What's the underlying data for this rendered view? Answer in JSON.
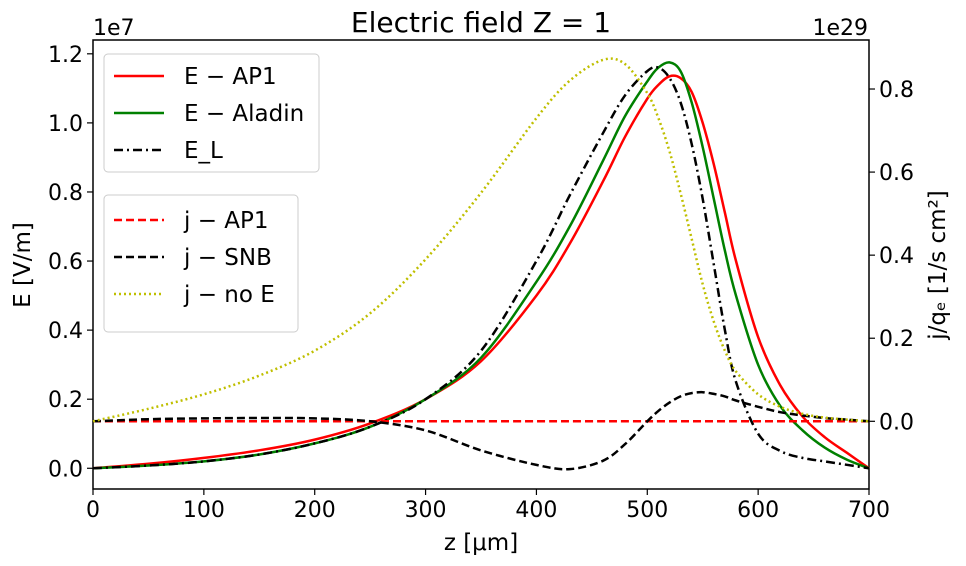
{
  "chart_data": {
    "type": "line",
    "title": "Electric field Z = 1",
    "xlabel": "z [μm]",
    "xlim": [
      0,
      700
    ],
    "xticks": [
      0,
      100,
      200,
      300,
      400,
      500,
      600,
      700
    ],
    "left_axis": {
      "label": "E [V/m]",
      "offset_text": "1e7",
      "ylim": [
        -0.06,
        1.24
      ],
      "ticks": [
        0.0,
        0.2,
        0.4,
        0.6,
        0.8,
        1.0,
        1.2
      ],
      "tick_labels": [
        "0.0",
        "0.2",
        "0.4",
        "0.6",
        "0.8",
        "1.0",
        "1.2"
      ]
    },
    "right_axis": {
      "label": "j/qₑ [1/s cm²]",
      "offset_text": "1e29",
      "ylim": [
        -0.163,
        0.918
      ],
      "ticks": [
        0.0,
        0.2,
        0.4,
        0.6,
        0.8
      ],
      "tick_labels": [
        "0.0",
        "0.2",
        "0.4",
        "0.6",
        "0.8"
      ]
    },
    "x": [
      0,
      50,
      100,
      150,
      200,
      250,
      300,
      350,
      400,
      430,
      460,
      480,
      500,
      510,
      520,
      530,
      540,
      550,
      560,
      570,
      580,
      600,
      620,
      640,
      660,
      680,
      700
    ],
    "series": [
      {
        "name": "E − AP1",
        "axis": "left",
        "color": "#ff0000",
        "style": "solid",
        "values": [
          0.0,
          0.013,
          0.03,
          0.052,
          0.083,
          0.13,
          0.2,
          0.31,
          0.5,
          0.65,
          0.83,
          0.96,
          1.07,
          1.11,
          1.135,
          1.13,
          1.09,
          1.0,
          0.88,
          0.74,
          0.6,
          0.38,
          0.24,
          0.15,
          0.09,
          0.045,
          0.0
        ]
      },
      {
        "name": "E − Aladin",
        "axis": "left",
        "color": "#008000",
        "style": "solid",
        "values": [
          0.0,
          0.008,
          0.02,
          0.04,
          0.072,
          0.12,
          0.2,
          0.32,
          0.54,
          0.7,
          0.89,
          1.02,
          1.12,
          1.16,
          1.175,
          1.15,
          1.06,
          0.93,
          0.78,
          0.63,
          0.5,
          0.3,
          0.18,
          0.11,
          0.06,
          0.025,
          0.0
        ]
      },
      {
        "name": "E_L",
        "axis": "left",
        "color": "#000000",
        "style": "dashdot",
        "values": [
          0.0,
          0.008,
          0.02,
          0.04,
          0.072,
          0.12,
          0.2,
          0.34,
          0.6,
          0.79,
          0.97,
          1.08,
          1.15,
          1.16,
          1.13,
          1.06,
          0.94,
          0.78,
          0.59,
          0.4,
          0.25,
          0.1,
          0.05,
          0.03,
          0.02,
          0.01,
          0.0
        ]
      },
      {
        "name": "j − AP1",
        "axis": "right",
        "color": "#ff0000",
        "style": "dashed",
        "values": [
          0,
          0,
          0,
          0,
          0,
          0,
          0,
          0,
          0,
          0,
          0,
          0,
          0,
          0,
          0,
          0,
          0,
          0,
          0,
          0,
          0,
          0,
          0,
          0,
          0,
          0,
          0
        ]
      },
      {
        "name": "j − SNB",
        "axis": "right",
        "color": "#000000",
        "style": "dashed",
        "values": [
          0.0,
          0.005,
          0.007,
          0.008,
          0.007,
          0.0,
          -0.022,
          -0.07,
          -0.105,
          -0.115,
          -0.095,
          -0.055,
          0.0,
          0.025,
          0.045,
          0.06,
          0.068,
          0.07,
          0.066,
          0.06,
          0.05,
          0.035,
          0.022,
          0.014,
          0.008,
          0.004,
          0.0
        ]
      },
      {
        "name": "j − no E",
        "axis": "right",
        "color": "#bfbf00",
        "style": "dotted",
        "values": [
          0.0,
          0.03,
          0.065,
          0.11,
          0.17,
          0.26,
          0.39,
          0.55,
          0.73,
          0.82,
          0.87,
          0.86,
          0.79,
          0.73,
          0.65,
          0.55,
          0.44,
          0.33,
          0.24,
          0.17,
          0.12,
          0.065,
          0.035,
          0.018,
          0.009,
          0.004,
          0.0
        ]
      }
    ],
    "legends": [
      {
        "placement": "upper-left",
        "series": [
          0,
          1,
          2
        ]
      },
      {
        "placement": "center-left",
        "series": [
          3,
          4,
          5
        ]
      }
    ],
    "grid": false
  }
}
